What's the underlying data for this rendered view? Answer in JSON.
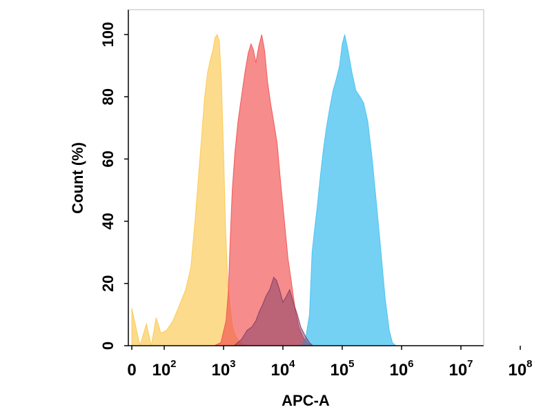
{
  "chart_data": {
    "type": "area",
    "title": "",
    "xlabel": "APC-A",
    "ylabel": "Count  (%)",
    "xscale": "biexponential",
    "xlim": [
      0,
      100000000
    ],
    "ylim": [
      0,
      108
    ],
    "grid": false,
    "legend": "none",
    "y_ticks": [
      {
        "value": 0,
        "label": "0"
      },
      {
        "value": 20,
        "label": "20"
      },
      {
        "value": 40,
        "label": "40"
      },
      {
        "value": 60,
        "label": "60"
      },
      {
        "value": 80,
        "label": "80"
      },
      {
        "value": 100,
        "label": "100"
      }
    ],
    "x_ticks": [
      {
        "value": 0,
        "base": "0",
        "exp": ""
      },
      {
        "value": 100,
        "base": "10",
        "exp": "2"
      },
      {
        "value": 1000,
        "base": "10",
        "exp": "3"
      },
      {
        "value": 10000,
        "base": "10",
        "exp": "4"
      },
      {
        "value": 100000,
        "base": "10",
        "exp": "5"
      },
      {
        "value": 1000000,
        "base": "10",
        "exp": "6"
      },
      {
        "value": 10000000,
        "base": "10",
        "exp": "7"
      },
      {
        "value": 100000000,
        "base": "10",
        "exp": "8"
      }
    ],
    "series": [
      {
        "color": "#fcc84e",
        "opacity": 0.65,
        "points": [
          [
            0,
            12
          ],
          [
            25,
            0
          ],
          [
            45,
            7
          ],
          [
            60,
            0
          ],
          [
            75,
            9
          ],
          [
            90,
            4
          ],
          [
            110,
            5
          ],
          [
            140,
            8
          ],
          [
            180,
            13
          ],
          [
            230,
            18
          ],
          [
            280,
            25
          ],
          [
            330,
            40
          ],
          [
            380,
            55
          ],
          [
            430,
            68
          ],
          [
            480,
            80
          ],
          [
            540,
            88
          ],
          [
            600,
            92
          ],
          [
            660,
            95
          ],
          [
            720,
            99
          ],
          [
            780,
            100
          ],
          [
            850,
            98
          ],
          [
            920,
            85
          ],
          [
            1000,
            62
          ],
          [
            1080,
            38
          ],
          [
            1180,
            20
          ],
          [
            1300,
            12
          ],
          [
            1420,
            6
          ],
          [
            1600,
            3
          ],
          [
            1900,
            1
          ],
          [
            2500,
            0
          ]
        ]
      },
      {
        "color": "#f14f4f",
        "opacity": 0.65,
        "points": [
          [
            700,
            0
          ],
          [
            900,
            1
          ],
          [
            1100,
            8
          ],
          [
            1200,
            17
          ],
          [
            1300,
            35
          ],
          [
            1400,
            50
          ],
          [
            1550,
            62
          ],
          [
            1750,
            72
          ],
          [
            2000,
            80
          ],
          [
            2300,
            88
          ],
          [
            2600,
            94
          ],
          [
            2900,
            97
          ],
          [
            3200,
            95
          ],
          [
            3500,
            91
          ],
          [
            3900,
            96
          ],
          [
            4400,
            100
          ],
          [
            4900,
            95
          ],
          [
            5500,
            85
          ],
          [
            6200,
            78
          ],
          [
            7000,
            72
          ],
          [
            8000,
            65
          ],
          [
            9200,
            52
          ],
          [
            10600,
            40
          ],
          [
            12200,
            28
          ],
          [
            14000,
            20
          ],
          [
            16000,
            12
          ],
          [
            18500,
            6
          ],
          [
            21500,
            3
          ],
          [
            25000,
            1
          ],
          [
            30000,
            0
          ]
        ]
      },
      {
        "color": "#46c1f0",
        "opacity": 0.75,
        "points": [
          [
            20000,
            0
          ],
          [
            24000,
            2
          ],
          [
            28000,
            10
          ],
          [
            31000,
            30
          ],
          [
            34000,
            37
          ],
          [
            38000,
            45
          ],
          [
            43000,
            55
          ],
          [
            48000,
            63
          ],
          [
            54000,
            70
          ],
          [
            61000,
            76
          ],
          [
            70000,
            82
          ],
          [
            80000,
            86
          ],
          [
            90000,
            90
          ],
          [
            100000,
            97
          ],
          [
            110000,
            100
          ],
          [
            125000,
            95
          ],
          [
            145000,
            88
          ],
          [
            170000,
            82
          ],
          [
            200000,
            80
          ],
          [
            230000,
            78
          ],
          [
            270000,
            72
          ],
          [
            320000,
            60
          ],
          [
            380000,
            45
          ],
          [
            450000,
            30
          ],
          [
            530000,
            15
          ],
          [
            620000,
            5
          ],
          [
            700000,
            1
          ],
          [
            800000,
            0
          ]
        ]
      },
      {
        "color": "#7f3a62",
        "opacity": 0.5,
        "points": [
          [
            1500,
            0
          ],
          [
            2000,
            2
          ],
          [
            2500,
            5
          ],
          [
            3000,
            6
          ],
          [
            3500,
            8
          ],
          [
            4000,
            11
          ],
          [
            4500,
            13
          ],
          [
            5200,
            16
          ],
          [
            6000,
            18
          ],
          [
            7000,
            22
          ],
          [
            7800,
            21
          ],
          [
            8800,
            18
          ],
          [
            10000,
            14
          ],
          [
            11500,
            16
          ],
          [
            13000,
            18
          ],
          [
            15000,
            14
          ],
          [
            17500,
            10
          ],
          [
            20000,
            6
          ],
          [
            24000,
            3
          ],
          [
            28000,
            1
          ],
          [
            32000,
            0
          ]
        ]
      }
    ]
  }
}
